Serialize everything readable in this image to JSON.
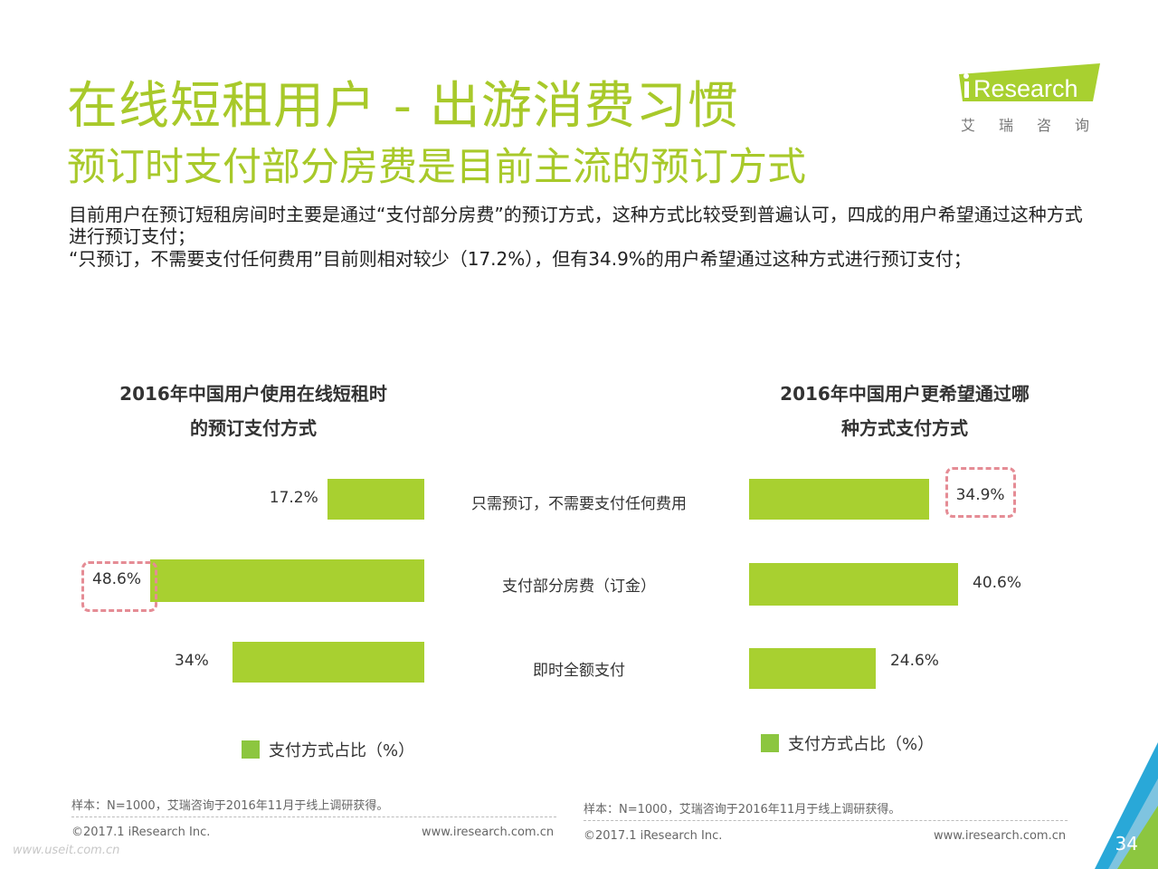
{
  "title": "在线短租用户 - 出游消费习惯",
  "subtitle": "预订时支付部分房费是目前主流的预订方式",
  "description_1": "目前用户在预订短租房间时主要是通过“支付部分房费”的预订方式，这种方式比较受到普遍认可，四成的用户希望通过这种方式进行预订支付；",
  "description_2": "“只预订，不需要支付任何费用”目前则相对较少（17.2%），但有34.9%的用户希望通过这种方式进行预订支付；",
  "logo": {
    "brand": "iResearch",
    "cn": "艾瑞咨询"
  },
  "colors": {
    "accent": "#a8c92a",
    "bar": "#a8d030",
    "highlight": "#e58c95",
    "logo_green": "#a8d030"
  },
  "chart_data": [
    {
      "type": "bar",
      "orientation": "horizontal",
      "direction": "right-to-left",
      "title_line1": "2016年中国用户使用在线短租时",
      "title_line2": "的预订支付方式",
      "categories": [
        "只需预订，不需要支付任何费用",
        "支付部分房费（订金）",
        "即时全额支付"
      ],
      "values": [
        17.2,
        48.6,
        34
      ],
      "value_labels": [
        "17.2%",
        "48.6%",
        "34%"
      ],
      "highlighted_index": 1,
      "legend": "支付方式占比（%）",
      "xlim": [
        0,
        48.6
      ]
    },
    {
      "type": "bar",
      "orientation": "horizontal",
      "direction": "left-to-right",
      "title_line1": "2016年中国用户更希望通过哪",
      "title_line2": "种方式支付方式",
      "categories": [
        "只需预订，不需要支付任何费用",
        "支付部分房费（订金）",
        "即时全额支付"
      ],
      "values": [
        34.9,
        40.6,
        24.6
      ],
      "value_labels": [
        "34.9%",
        "40.6%",
        "24.6%"
      ],
      "highlighted_index": 0,
      "legend": "支付方式占比（%）",
      "xlim": [
        0,
        40.6
      ]
    }
  ],
  "footer": {
    "sample": "样本：N=1000，艾瑞咨询于2016年11月于线上调研获得。",
    "copyright": "©2017.1 iResearch Inc.",
    "website": "www.iresearch.com.cn"
  },
  "watermark": "www.useit.com.cn",
  "page_number": "34"
}
